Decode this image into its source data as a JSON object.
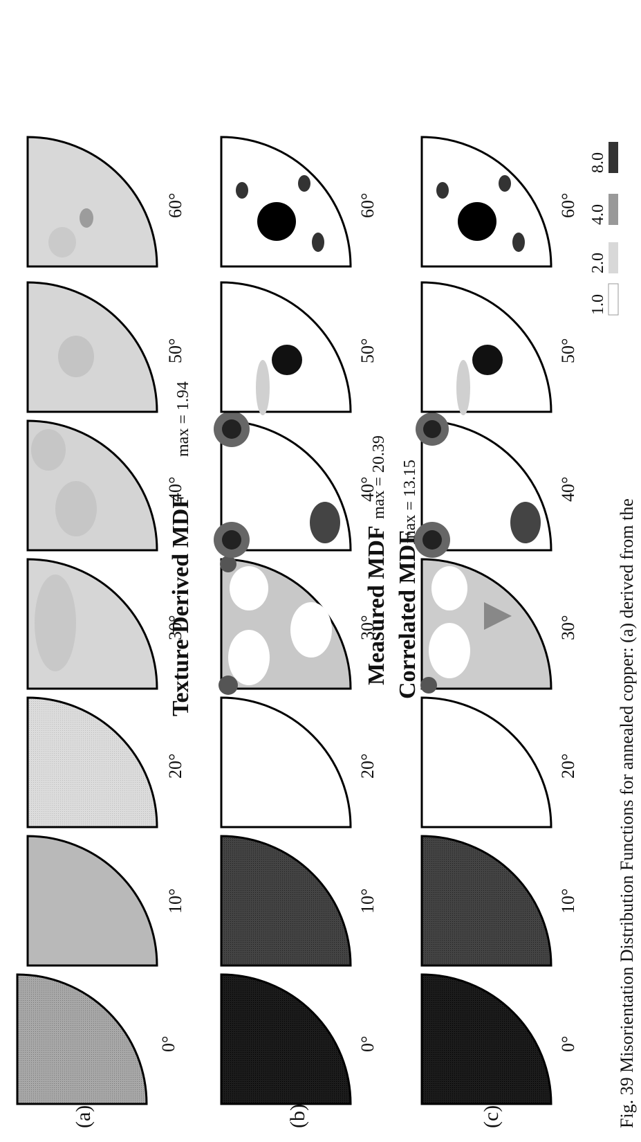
{
  "figure": {
    "caption_visible": "Fig. 39  Misorientation Distribution Functions for annealed copper: (a) derived from the",
    "angles": [
      "0°",
      "10°",
      "20°",
      "30°",
      "40°",
      "50°",
      "60°"
    ],
    "panels": [
      {
        "letter": "(a)",
        "title": "Texture Derived MDF",
        "max_label": "max = 1.94"
      },
      {
        "letter": "(b)",
        "title": "Measured MDF",
        "max_label": "max = 20.39"
      },
      {
        "letter": "(c)",
        "title": "Correlated MDF",
        "max_label": "max = 13.15"
      }
    ],
    "scale_labels": [
      "1.0",
      "2.0",
      "4.0",
      "8.0"
    ]
  }
}
